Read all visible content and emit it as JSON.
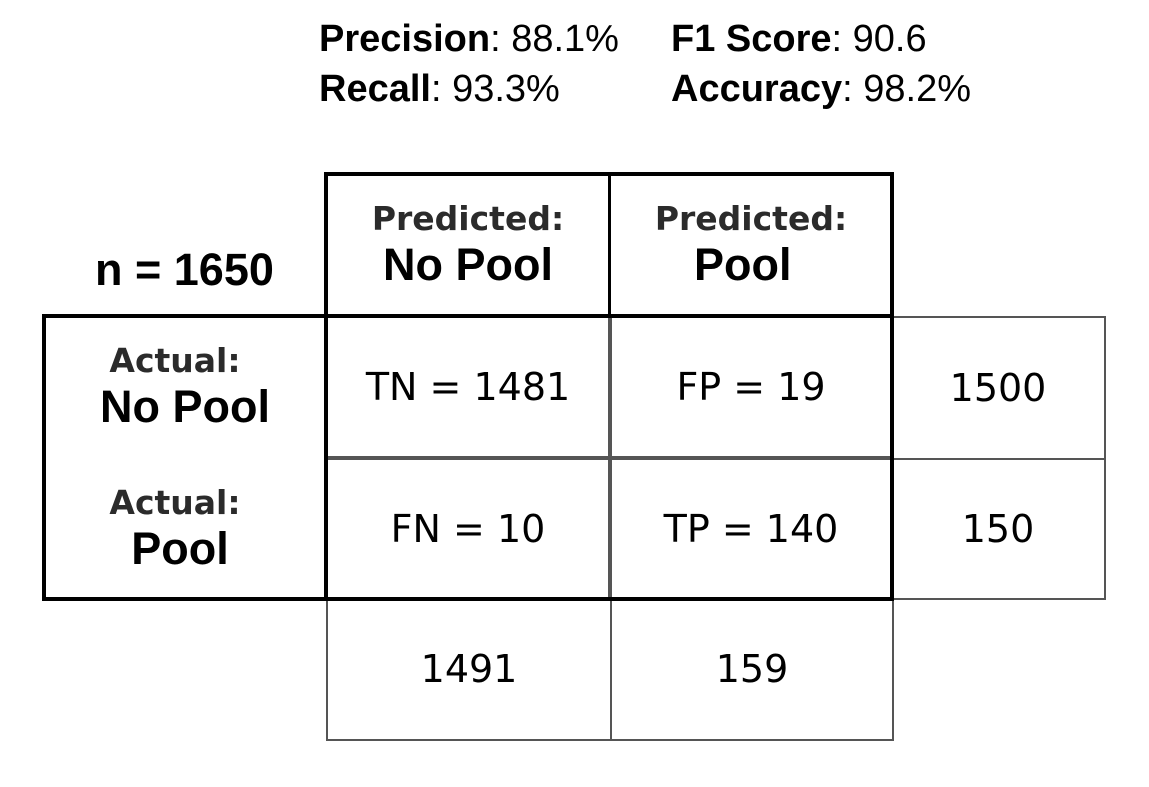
{
  "metrics": {
    "precision": {
      "label": "Precision",
      "value": ": 88.1%"
    },
    "recall": {
      "label": "Recall",
      "value": ": 93.3%"
    },
    "f1": {
      "label": "F1 Score",
      "value": ": 90.6"
    },
    "accuracy": {
      "label": "Accuracy",
      "value": ": 98.2%"
    }
  },
  "n_label": "n = 1650",
  "columns": [
    {
      "prefix": "Predicted:",
      "name": "No Pool"
    },
    {
      "prefix": "Predicted:",
      "name": "Pool"
    }
  ],
  "rows": [
    {
      "prefix": "Actual:",
      "name": "No Pool",
      "cells": [
        "TN = 1481",
        "FP = 19"
      ],
      "total": "1500"
    },
    {
      "prefix": "Actual:",
      "name": "Pool",
      "cells": [
        "FN = 10",
        "TP = 140"
      ],
      "total": "150"
    }
  ],
  "column_totals": [
    "1491",
    "159"
  ]
}
